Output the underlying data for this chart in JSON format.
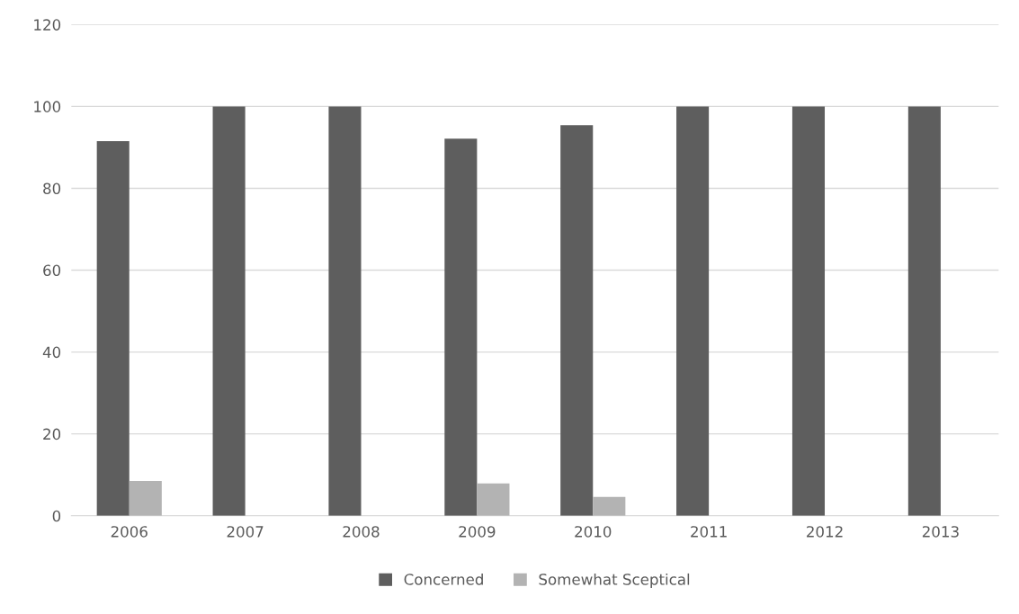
{
  "chart_data": {
    "type": "bar",
    "categories": [
      "2006",
      "2007",
      "2008",
      "2009",
      "2010",
      "2011",
      "2012",
      "2013"
    ],
    "series": [
      {
        "name": "Concerned",
        "color": "#5e5e5e",
        "values": [
          91.5,
          100,
          100,
          92.1,
          95.4,
          100,
          100,
          100
        ]
      },
      {
        "name": "Somewhat Sceptical",
        "color": "#b3b3b3",
        "values": [
          8.5,
          0,
          0,
          7.9,
          4.6,
          0,
          0,
          0
        ]
      }
    ],
    "ylim": [
      0,
      120
    ],
    "yticks": [
      0,
      20,
      40,
      60,
      80,
      100,
      120
    ],
    "grid": "y",
    "legend": "bottom"
  }
}
